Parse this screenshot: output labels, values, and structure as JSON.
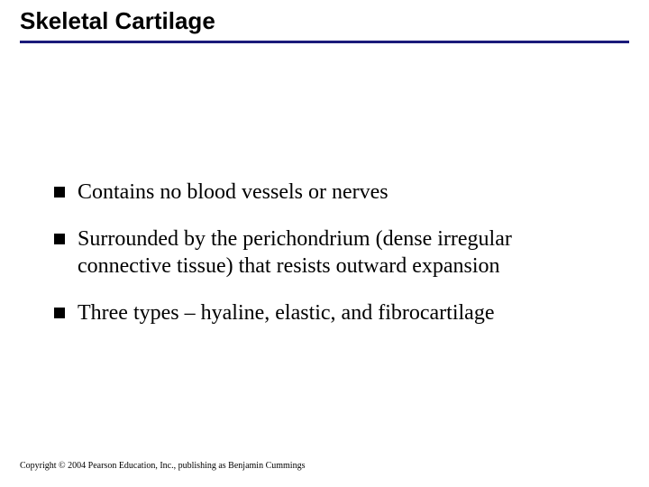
{
  "title": "Skeletal Cartilage",
  "title_fontsize": 26,
  "title_color": "#000000",
  "rule_color": "#1a1a7a",
  "rule_thickness": 3,
  "background_color": "#ffffff",
  "bullets": [
    {
      "text": "Contains no blood vessels or nerves"
    },
    {
      "text": "Surrounded by the perichondrium (dense irregular connective tissue) that resists outward expansion"
    },
    {
      "text": "Three types – hyaline, elastic, and fibrocartilage"
    }
  ],
  "bullet_fontsize": 24,
  "bullet_marker_color": "#000000",
  "bullet_text_color": "#000000",
  "copyright": "Copyright © 2004 Pearson Education, Inc., publishing as Benjamin Cummings",
  "copyright_fontsize": 10
}
